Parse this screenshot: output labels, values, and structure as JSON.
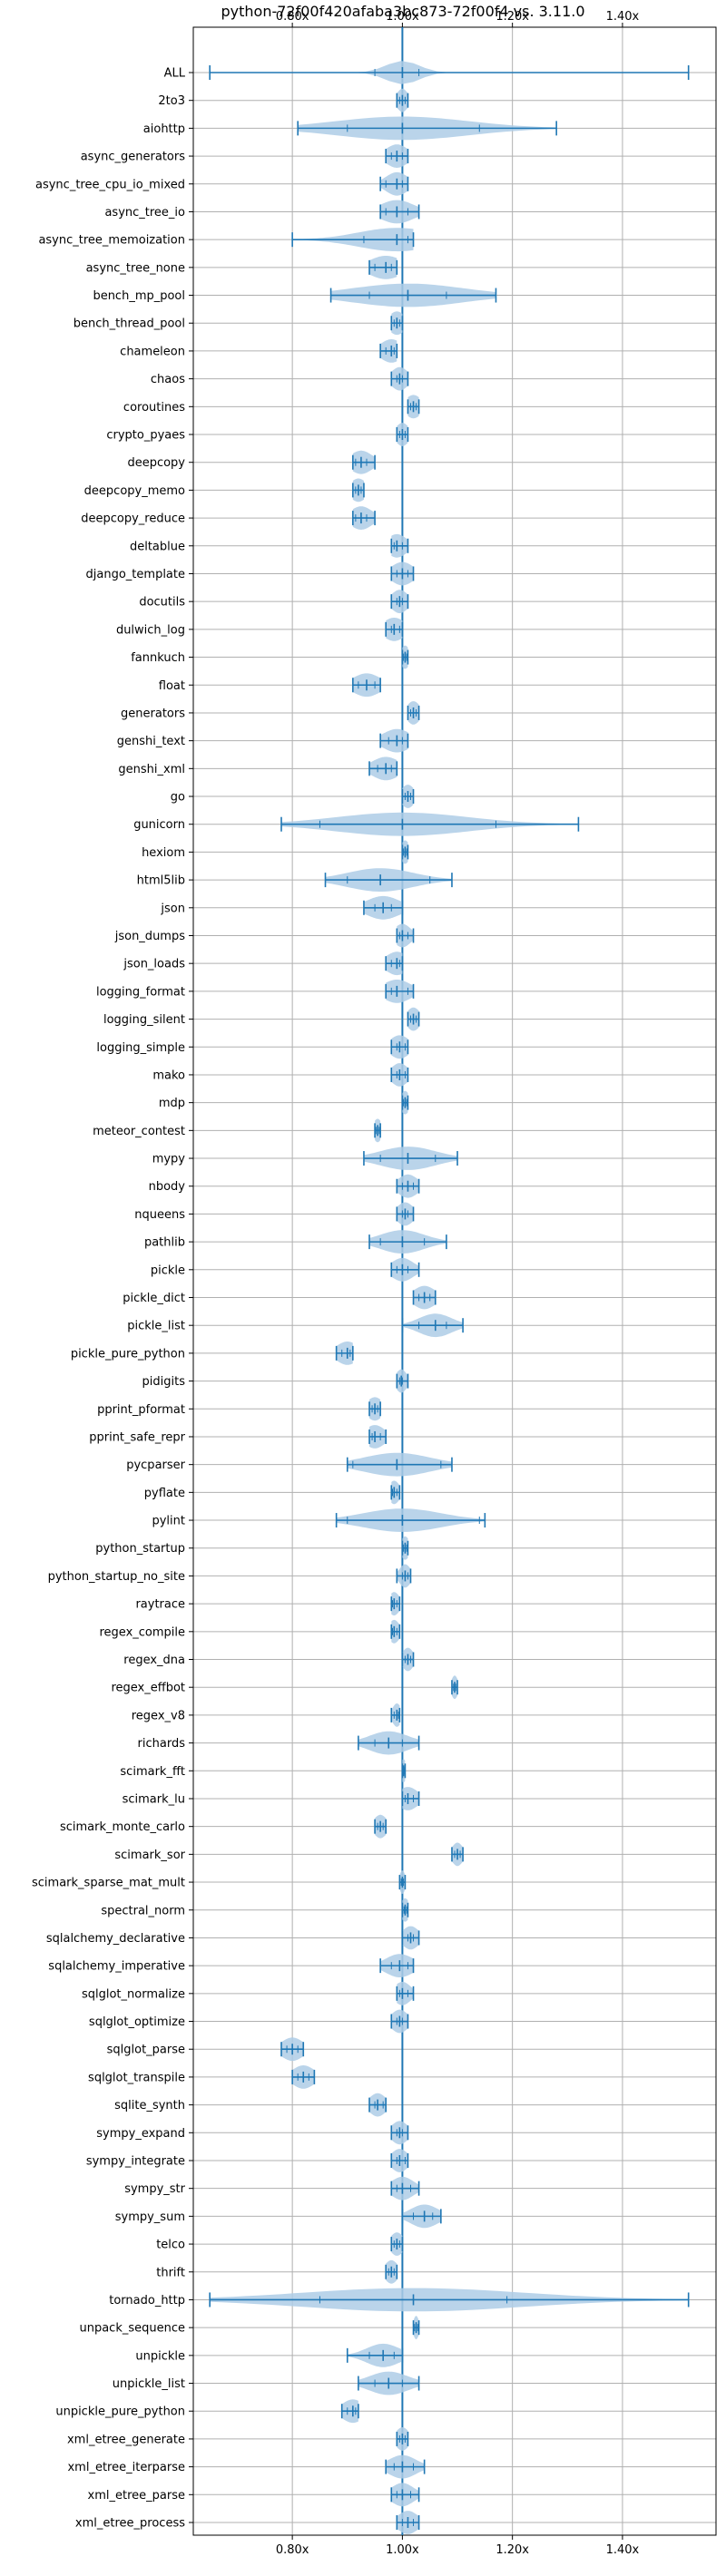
{
  "chart_data": {
    "type": "violin",
    "orientation": "horizontal",
    "title": "python-72f00f420afaba3bc873-72f00f4 vs. 3.11.0",
    "xlabel": "",
    "ylabel": "",
    "xlim": [
      0.62,
      1.57
    ],
    "x_ticks": [
      0.8,
      1.0,
      1.2,
      1.4
    ],
    "x_tick_labels": [
      "0.80x",
      "1.00x",
      "1.20x",
      "1.40x"
    ],
    "reference_line": 1.0,
    "grid": true,
    "colors": {
      "body": "#aecde6",
      "line": "#1f77b4",
      "grid": "#b0b0b0",
      "ref": "#1f77b4"
    },
    "benchmarks": [
      {
        "name": "ALL",
        "min": 0.65,
        "q1": 0.95,
        "median": 1.0,
        "q3": 1.03,
        "max": 1.52,
        "spread": 0.03
      },
      {
        "name": "2to3",
        "min": 0.99,
        "q1": 0.995,
        "median": 1.0,
        "q3": 1.005,
        "max": 1.01,
        "spread": 0.01
      },
      {
        "name": "aiohttp",
        "min": 0.81,
        "q1": 0.9,
        "median": 1.0,
        "q3": 1.14,
        "max": 1.28,
        "spread": 0.12
      },
      {
        "name": "async_generators",
        "min": 0.97,
        "q1": 0.98,
        "median": 0.99,
        "q3": 1.0,
        "max": 1.01,
        "spread": 0.02
      },
      {
        "name": "async_tree_cpu_io_mixed",
        "min": 0.96,
        "q1": 0.97,
        "median": 0.99,
        "q3": 1.0,
        "max": 1.01,
        "spread": 0.02
      },
      {
        "name": "async_tree_io",
        "min": 0.96,
        "q1": 0.97,
        "median": 0.99,
        "q3": 1.01,
        "max": 1.03,
        "spread": 0.03
      },
      {
        "name": "async_tree_memoization",
        "min": 0.8,
        "q1": 0.93,
        "median": 0.99,
        "q3": 1.01,
        "max": 1.02,
        "spread": 0.07
      },
      {
        "name": "async_tree_none",
        "min": 0.94,
        "q1": 0.95,
        "median": 0.97,
        "q3": 0.98,
        "max": 0.99,
        "spread": 0.03
      },
      {
        "name": "bench_mp_pool",
        "min": 0.87,
        "q1": 0.94,
        "median": 1.01,
        "q3": 1.08,
        "max": 1.17,
        "spread": 0.1
      },
      {
        "name": "bench_thread_pool",
        "min": 0.98,
        "q1": 0.985,
        "median": 0.99,
        "q3": 0.995,
        "max": 1.0,
        "spread": 0.015
      },
      {
        "name": "chameleon",
        "min": 0.96,
        "q1": 0.97,
        "median": 0.98,
        "q3": 0.985,
        "max": 0.99,
        "spread": 0.02
      },
      {
        "name": "chaos",
        "min": 0.98,
        "q1": 0.99,
        "median": 0.995,
        "q3": 1.0,
        "max": 1.01,
        "spread": 0.015
      },
      {
        "name": "coroutines",
        "min": 1.01,
        "q1": 1.015,
        "median": 1.02,
        "q3": 1.025,
        "max": 1.03,
        "spread": 0.015
      },
      {
        "name": "crypto_pyaes",
        "min": 0.99,
        "q1": 0.995,
        "median": 1.0,
        "q3": 1.005,
        "max": 1.01,
        "spread": 0.012
      },
      {
        "name": "deepcopy",
        "min": 0.91,
        "q1": 0.915,
        "median": 0.925,
        "q3": 0.935,
        "max": 0.95,
        "spread": 0.02
      },
      {
        "name": "deepcopy_memo",
        "min": 0.91,
        "q1": 0.915,
        "median": 0.92,
        "q3": 0.925,
        "max": 0.93,
        "spread": 0.015
      },
      {
        "name": "deepcopy_reduce",
        "min": 0.91,
        "q1": 0.915,
        "median": 0.925,
        "q3": 0.935,
        "max": 0.95,
        "spread": 0.02
      },
      {
        "name": "deltablue",
        "min": 0.98,
        "q1": 0.985,
        "median": 0.99,
        "q3": 1.0,
        "max": 1.01,
        "spread": 0.018
      },
      {
        "name": "django_template",
        "min": 0.98,
        "q1": 0.99,
        "median": 1.0,
        "q3": 1.01,
        "max": 1.02,
        "spread": 0.02
      },
      {
        "name": "docutils",
        "min": 0.98,
        "q1": 0.99,
        "median": 0.995,
        "q3": 1.0,
        "max": 1.01,
        "spread": 0.015
      },
      {
        "name": "dulwich_log",
        "min": 0.97,
        "q1": 0.98,
        "median": 0.985,
        "q3": 0.995,
        "max": 1.0,
        "spread": 0.02
      },
      {
        "name": "fannkuch",
        "min": 1.0,
        "q1": 1.002,
        "median": 1.005,
        "q3": 1.008,
        "max": 1.01,
        "spread": 0.008
      },
      {
        "name": "float",
        "min": 0.91,
        "q1": 0.92,
        "median": 0.935,
        "q3": 0.95,
        "max": 0.96,
        "spread": 0.025
      },
      {
        "name": "generators",
        "min": 1.01,
        "q1": 1.015,
        "median": 1.02,
        "q3": 1.025,
        "max": 1.03,
        "spread": 0.012
      },
      {
        "name": "genshi_text",
        "min": 0.96,
        "q1": 0.975,
        "median": 0.99,
        "q3": 1.0,
        "max": 1.01,
        "spread": 0.025
      },
      {
        "name": "genshi_xml",
        "min": 0.94,
        "q1": 0.955,
        "median": 0.97,
        "q3": 0.98,
        "max": 0.99,
        "spread": 0.025
      },
      {
        "name": "go",
        "min": 1.0,
        "q1": 1.005,
        "median": 1.01,
        "q3": 1.015,
        "max": 1.02,
        "spread": 0.012
      },
      {
        "name": "gunicorn",
        "min": 0.78,
        "q1": 0.85,
        "median": 1.0,
        "q3": 1.17,
        "max": 1.32,
        "spread": 0.12
      },
      {
        "name": "hexiom",
        "min": 1.0,
        "q1": 1.002,
        "median": 1.005,
        "q3": 1.008,
        "max": 1.01,
        "spread": 0.008
      },
      {
        "name": "html5lib",
        "min": 0.86,
        "q1": 0.9,
        "median": 0.96,
        "q3": 1.05,
        "max": 1.09,
        "spread": 0.06
      },
      {
        "name": "json",
        "min": 0.93,
        "q1": 0.95,
        "median": 0.965,
        "q3": 0.98,
        "max": 1.0,
        "spread": 0.03
      },
      {
        "name": "json_dumps",
        "min": 0.99,
        "q1": 0.995,
        "median": 1.0,
        "q3": 1.01,
        "max": 1.02,
        "spread": 0.015
      },
      {
        "name": "json_loads",
        "min": 0.97,
        "q1": 0.98,
        "median": 0.99,
        "q3": 0.995,
        "max": 1.0,
        "spread": 0.02
      },
      {
        "name": "logging_format",
        "min": 0.97,
        "q1": 0.98,
        "median": 0.99,
        "q3": 1.01,
        "max": 1.02,
        "spread": 0.025
      },
      {
        "name": "logging_silent",
        "min": 1.01,
        "q1": 1.015,
        "median": 1.02,
        "q3": 1.025,
        "max": 1.03,
        "spread": 0.012
      },
      {
        "name": "logging_simple",
        "min": 0.98,
        "q1": 0.99,
        "median": 0.995,
        "q3": 1.005,
        "max": 1.01,
        "spread": 0.018
      },
      {
        "name": "mako",
        "min": 0.98,
        "q1": 0.99,
        "median": 0.995,
        "q3": 1.005,
        "max": 1.01,
        "spread": 0.015
      },
      {
        "name": "mdp",
        "min": 1.0,
        "q1": 1.002,
        "median": 1.005,
        "q3": 1.008,
        "max": 1.01,
        "spread": 0.008
      },
      {
        "name": "meteor_contest",
        "min": 0.95,
        "q1": 0.952,
        "median": 0.955,
        "q3": 0.958,
        "max": 0.96,
        "spread": 0.008
      },
      {
        "name": "mypy",
        "min": 0.93,
        "q1": 0.96,
        "median": 1.01,
        "q3": 1.06,
        "max": 1.1,
        "spread": 0.05
      },
      {
        "name": "nbody",
        "min": 0.99,
        "q1": 1.0,
        "median": 1.01,
        "q3": 1.02,
        "max": 1.03,
        "spread": 0.018
      },
      {
        "name": "nqueens",
        "min": 0.99,
        "q1": 1.0,
        "median": 1.005,
        "q3": 1.01,
        "max": 1.02,
        "spread": 0.015
      },
      {
        "name": "pathlib",
        "min": 0.94,
        "q1": 0.96,
        "median": 1.0,
        "q3": 1.04,
        "max": 1.08,
        "spread": 0.04
      },
      {
        "name": "pickle",
        "min": 0.98,
        "q1": 0.99,
        "median": 1.0,
        "q3": 1.01,
        "max": 1.03,
        "spread": 0.02
      },
      {
        "name": "pickle_dict",
        "min": 1.02,
        "q1": 1.03,
        "median": 1.04,
        "q3": 1.05,
        "max": 1.06,
        "spread": 0.02
      },
      {
        "name": "pickle_list",
        "min": 1.0,
        "q1": 1.03,
        "median": 1.06,
        "q3": 1.08,
        "max": 1.11,
        "spread": 0.03
      },
      {
        "name": "pickle_pure_python",
        "min": 0.88,
        "q1": 0.89,
        "median": 0.9,
        "q3": 0.905,
        "max": 0.91,
        "spread": 0.02
      },
      {
        "name": "pidigits",
        "min": 0.99,
        "q1": 0.995,
        "median": 0.998,
        "q3": 1.0,
        "max": 1.01,
        "spread": 0.01
      },
      {
        "name": "pprint_pformat",
        "min": 0.94,
        "q1": 0.945,
        "median": 0.95,
        "q3": 0.955,
        "max": 0.96,
        "spread": 0.015
      },
      {
        "name": "pprint_safe_repr",
        "min": 0.94,
        "q1": 0.945,
        "median": 0.95,
        "q3": 0.96,
        "max": 0.97,
        "spread": 0.018
      },
      {
        "name": "pycparser",
        "min": 0.9,
        "q1": 0.91,
        "median": 0.99,
        "q3": 1.07,
        "max": 1.09,
        "spread": 0.06
      },
      {
        "name": "pyflate",
        "min": 0.98,
        "q1": 0.982,
        "median": 0.985,
        "q3": 0.99,
        "max": 0.995,
        "spread": 0.01
      },
      {
        "name": "pylint",
        "min": 0.88,
        "q1": 0.9,
        "median": 1.0,
        "q3": 1.14,
        "max": 1.15,
        "spread": 0.07
      },
      {
        "name": "python_startup",
        "min": 1.0,
        "q1": 1.002,
        "median": 1.005,
        "q3": 1.008,
        "max": 1.01,
        "spread": 0.008
      },
      {
        "name": "python_startup_no_site",
        "min": 0.99,
        "q1": 1.0,
        "median": 1.005,
        "q3": 1.01,
        "max": 1.015,
        "spread": 0.01
      },
      {
        "name": "raytrace",
        "min": 0.98,
        "q1": 0.982,
        "median": 0.985,
        "q3": 0.99,
        "max": 0.995,
        "spread": 0.01
      },
      {
        "name": "regex_compile",
        "min": 0.98,
        "q1": 0.982,
        "median": 0.985,
        "q3": 0.99,
        "max": 0.995,
        "spread": 0.01
      },
      {
        "name": "regex_dna",
        "min": 1.0,
        "q1": 1.005,
        "median": 1.01,
        "q3": 1.015,
        "max": 1.02,
        "spread": 0.01
      },
      {
        "name": "regex_effbot",
        "min": 1.09,
        "q1": 1.093,
        "median": 1.095,
        "q3": 1.097,
        "max": 1.1,
        "spread": 0.006
      },
      {
        "name": "regex_v8",
        "min": 0.98,
        "q1": 0.985,
        "median": 0.99,
        "q3": 0.993,
        "max": 0.995,
        "spread": 0.008
      },
      {
        "name": "richards",
        "min": 0.92,
        "q1": 0.95,
        "median": 0.975,
        "q3": 1.0,
        "max": 1.03,
        "spread": 0.035
      },
      {
        "name": "scimark_fft",
        "min": 1.0,
        "q1": 1.001,
        "median": 1.002,
        "q3": 1.003,
        "max": 1.005,
        "spread": 0.005
      },
      {
        "name": "scimark_lu",
        "min": 1.0,
        "q1": 1.005,
        "median": 1.01,
        "q3": 1.02,
        "max": 1.03,
        "spread": 0.018
      },
      {
        "name": "scimark_monte_carlo",
        "min": 0.95,
        "q1": 0.955,
        "median": 0.96,
        "q3": 0.965,
        "max": 0.97,
        "spread": 0.012
      },
      {
        "name": "scimark_sor",
        "min": 1.09,
        "q1": 1.095,
        "median": 1.1,
        "q3": 1.105,
        "max": 1.11,
        "spread": 0.01
      },
      {
        "name": "scimark_sparse_mat_mult",
        "min": 0.995,
        "q1": 0.998,
        "median": 1.0,
        "q3": 1.002,
        "max": 1.005,
        "spread": 0.005
      },
      {
        "name": "spectral_norm",
        "min": 1.0,
        "q1": 1.003,
        "median": 1.005,
        "q3": 1.008,
        "max": 1.01,
        "spread": 0.008
      },
      {
        "name": "sqlalchemy_declarative",
        "min": 1.0,
        "q1": 1.01,
        "median": 1.015,
        "q3": 1.02,
        "max": 1.03,
        "spread": 0.015
      },
      {
        "name": "sqlalchemy_imperative",
        "min": 0.96,
        "q1": 0.98,
        "median": 0.995,
        "q3": 1.01,
        "max": 1.02,
        "spread": 0.025
      },
      {
        "name": "sqlglot_normalize",
        "min": 0.99,
        "q1": 0.995,
        "median": 1.0,
        "q3": 1.01,
        "max": 1.02,
        "spread": 0.015
      },
      {
        "name": "sqlglot_optimize",
        "min": 0.98,
        "q1": 0.99,
        "median": 0.995,
        "q3": 1.0,
        "max": 1.01,
        "spread": 0.015
      },
      {
        "name": "sqlglot_parse",
        "min": 0.78,
        "q1": 0.79,
        "median": 0.8,
        "q3": 0.81,
        "max": 0.82,
        "spread": 0.02
      },
      {
        "name": "sqlglot_transpile",
        "min": 0.8,
        "q1": 0.81,
        "median": 0.82,
        "q3": 0.83,
        "max": 0.84,
        "spread": 0.02
      },
      {
        "name": "sqlite_synth",
        "min": 0.94,
        "q1": 0.95,
        "median": 0.955,
        "q3": 0.965,
        "max": 0.97,
        "spread": 0.015
      },
      {
        "name": "sympy_expand",
        "min": 0.98,
        "q1": 0.99,
        "median": 0.995,
        "q3": 1.0,
        "max": 1.01,
        "spread": 0.015
      },
      {
        "name": "sympy_integrate",
        "min": 0.98,
        "q1": 0.99,
        "median": 0.995,
        "q3": 1.005,
        "max": 1.01,
        "spread": 0.015
      },
      {
        "name": "sympy_str",
        "min": 0.98,
        "q1": 0.99,
        "median": 1.0,
        "q3": 1.015,
        "max": 1.03,
        "spread": 0.02
      },
      {
        "name": "sympy_sum",
        "min": 1.0,
        "q1": 1.02,
        "median": 1.04,
        "q3": 1.055,
        "max": 1.07,
        "spread": 0.025
      },
      {
        "name": "telco",
        "min": 0.98,
        "q1": 0.985,
        "median": 0.99,
        "q3": 0.995,
        "max": 1.0,
        "spread": 0.012
      },
      {
        "name": "thrift",
        "min": 0.97,
        "q1": 0.975,
        "median": 0.98,
        "q3": 0.985,
        "max": 0.99,
        "spread": 0.012
      },
      {
        "name": "tornado_http",
        "min": 0.65,
        "q1": 0.85,
        "median": 1.02,
        "q3": 1.19,
        "max": 1.52,
        "spread": 0.2
      },
      {
        "name": "unpack_sequence",
        "min": 1.02,
        "q1": 1.022,
        "median": 1.025,
        "q3": 1.028,
        "max": 1.03,
        "spread": 0.005
      },
      {
        "name": "unpickle",
        "min": 0.9,
        "q1": 0.94,
        "median": 0.965,
        "q3": 0.985,
        "max": 1.0,
        "spread": 0.03
      },
      {
        "name": "unpickle_list",
        "min": 0.92,
        "q1": 0.95,
        "median": 0.975,
        "q3": 1.0,
        "max": 1.03,
        "spread": 0.035
      },
      {
        "name": "unpickle_pure_python",
        "min": 0.89,
        "q1": 0.9,
        "median": 0.91,
        "q3": 0.915,
        "max": 0.92,
        "spread": 0.02
      },
      {
        "name": "xml_etree_generate",
        "min": 0.99,
        "q1": 0.995,
        "median": 1.0,
        "q3": 1.005,
        "max": 1.01,
        "spread": 0.012
      },
      {
        "name": "xml_etree_iterparse",
        "min": 0.97,
        "q1": 0.985,
        "median": 1.0,
        "q3": 1.02,
        "max": 1.04,
        "spread": 0.025
      },
      {
        "name": "xml_etree_parse",
        "min": 0.98,
        "q1": 0.99,
        "median": 1.0,
        "q3": 1.015,
        "max": 1.03,
        "spread": 0.02
      },
      {
        "name": "xml_etree_process",
        "min": 0.99,
        "q1": 1.0,
        "median": 1.01,
        "q3": 1.02,
        "max": 1.03,
        "spread": 0.018
      }
    ]
  }
}
